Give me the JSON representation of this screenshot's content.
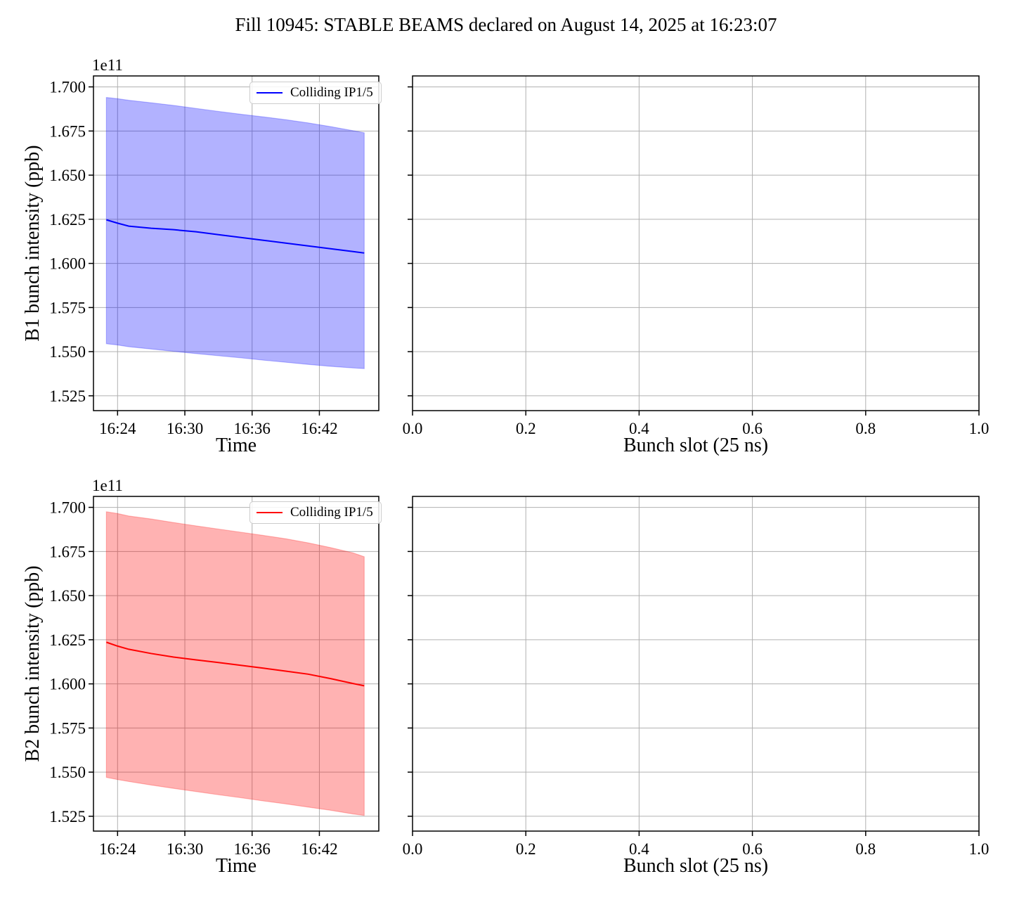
{
  "figure": {
    "title": "Fill 10945: STABLE BEAMS declared on August 14, 2025 at 16:23:07"
  },
  "chart_data": [
    {
      "name": "b1-intensity-vs-time",
      "type": "line",
      "xlabel": "Time",
      "ylabel": "B1 bunch intensity (ppb)",
      "offset_text": "1e11",
      "legend_label": "Colliding IP1/5",
      "legend_position": "upper center",
      "line_color": "#0000ff",
      "band_fill": "rgba(0,0,255,0.30)",
      "band_edge": "rgba(0,0,255,0.25)",
      "grid": true,
      "x_unit": "minutes-after-16:00",
      "xlim": [
        21.85,
        47.3
      ],
      "ylim": [
        1.5166,
        1.7062
      ],
      "xticks": [
        {
          "v": 24,
          "label": "16:24"
        },
        {
          "v": 30,
          "label": "16:30"
        },
        {
          "v": 36,
          "label": "16:36"
        },
        {
          "v": 42,
          "label": "16:42"
        }
      ],
      "yticks": [
        {
          "v": 1.7,
          "label": "1.700"
        },
        {
          "v": 1.675,
          "label": "1.675"
        },
        {
          "v": 1.65,
          "label": "1.650"
        },
        {
          "v": 1.625,
          "label": "1.625"
        },
        {
          "v": 1.6,
          "label": "1.600"
        },
        {
          "v": 1.575,
          "label": "1.575"
        },
        {
          "v": 1.55,
          "label": "1.550"
        },
        {
          "v": 1.525,
          "label": "1.525"
        }
      ],
      "series": {
        "x": [
          23,
          24,
          25,
          27,
          29,
          31,
          33,
          35,
          37,
          39,
          41,
          43,
          45,
          46
        ],
        "mean": [
          1.6247,
          1.6228,
          1.6211,
          1.6199,
          1.6191,
          1.6179,
          1.6163,
          1.6147,
          1.6131,
          1.6115,
          1.6099,
          1.6083,
          1.6067,
          1.6059
        ],
        "upper": [
          1.694,
          1.6933,
          1.6924,
          1.691,
          1.6895,
          1.6878,
          1.6861,
          1.6845,
          1.683,
          1.6814,
          1.6796,
          1.6775,
          1.6752,
          1.674
        ],
        "lower": [
          1.5545,
          1.5538,
          1.5528,
          1.5515,
          1.5502,
          1.5489,
          1.5477,
          1.5465,
          1.5452,
          1.544,
          1.5428,
          1.5417,
          1.5408,
          1.5404
        ]
      }
    },
    {
      "name": "b1-intensity-vs-bunch-slot",
      "type": "empty",
      "xlabel": "Bunch slot (25 ns)",
      "ylabel": "",
      "grid": true,
      "xlim": [
        0,
        1
      ],
      "ylim": [
        1.5166,
        1.7062
      ],
      "xticks": [
        {
          "v": 0.0,
          "label": "0.0"
        },
        {
          "v": 0.2,
          "label": "0.2"
        },
        {
          "v": 0.4,
          "label": "0.4"
        },
        {
          "v": 0.6,
          "label": "0.6"
        },
        {
          "v": 0.8,
          "label": "0.8"
        },
        {
          "v": 1.0,
          "label": "1.0"
        }
      ],
      "yticks": [
        {
          "v": 1.7,
          "label": ""
        },
        {
          "v": 1.675,
          "label": ""
        },
        {
          "v": 1.65,
          "label": ""
        },
        {
          "v": 1.625,
          "label": ""
        },
        {
          "v": 1.6,
          "label": ""
        },
        {
          "v": 1.575,
          "label": ""
        },
        {
          "v": 1.55,
          "label": ""
        },
        {
          "v": 1.525,
          "label": ""
        }
      ]
    },
    {
      "name": "b2-intensity-vs-time",
      "type": "line",
      "xlabel": "Time",
      "ylabel": "B2 bunch intensity (ppb)",
      "offset_text": "1e11",
      "legend_label": "Colliding IP1/5",
      "legend_position": "upper center",
      "line_color": "#ff0000",
      "band_fill": "rgba(255,0,0,0.30)",
      "band_edge": "rgba(255,0,0,0.25)",
      "grid": true,
      "x_unit": "minutes-after-16:00",
      "xlim": [
        21.85,
        47.3
      ],
      "ylim": [
        1.5166,
        1.7062
      ],
      "xticks": [
        {
          "v": 24,
          "label": "16:24"
        },
        {
          "v": 30,
          "label": "16:30"
        },
        {
          "v": 36,
          "label": "16:36"
        },
        {
          "v": 42,
          "label": "16:42"
        }
      ],
      "yticks": [
        {
          "v": 1.7,
          "label": "1.700"
        },
        {
          "v": 1.675,
          "label": "1.675"
        },
        {
          "v": 1.65,
          "label": "1.650"
        },
        {
          "v": 1.625,
          "label": "1.625"
        },
        {
          "v": 1.6,
          "label": "1.600"
        },
        {
          "v": 1.575,
          "label": "1.575"
        },
        {
          "v": 1.55,
          "label": "1.550"
        },
        {
          "v": 1.525,
          "label": "1.525"
        }
      ],
      "series": {
        "x": [
          23,
          24,
          25,
          27,
          29,
          31,
          33,
          35,
          37,
          39,
          41,
          43,
          45,
          46
        ],
        "mean": [
          1.6236,
          1.6214,
          1.6196,
          1.6172,
          1.6152,
          1.6136,
          1.6121,
          1.6105,
          1.6089,
          1.6072,
          1.6055,
          1.603,
          1.6002,
          1.5989
        ],
        "upper": [
          1.6975,
          1.6965,
          1.6951,
          1.6934,
          1.6914,
          1.6895,
          1.6877,
          1.6859,
          1.6841,
          1.6822,
          1.6799,
          1.6772,
          1.6742,
          1.672
        ],
        "lower": [
          1.547,
          1.5458,
          1.5447,
          1.5427,
          1.5408,
          1.539,
          1.5372,
          1.5355,
          1.5337,
          1.532,
          1.5302,
          1.5284,
          1.5263,
          1.5255
        ]
      }
    },
    {
      "name": "b2-intensity-vs-bunch-slot",
      "type": "empty",
      "xlabel": "Bunch slot (25 ns)",
      "ylabel": "",
      "grid": true,
      "xlim": [
        0,
        1
      ],
      "ylim": [
        1.5166,
        1.7062
      ],
      "xticks": [
        {
          "v": 0.0,
          "label": "0.0"
        },
        {
          "v": 0.2,
          "label": "0.2"
        },
        {
          "v": 0.4,
          "label": "0.4"
        },
        {
          "v": 0.6,
          "label": "0.6"
        },
        {
          "v": 0.8,
          "label": "0.8"
        },
        {
          "v": 1.0,
          "label": "1.0"
        }
      ],
      "yticks": [
        {
          "v": 1.7,
          "label": ""
        },
        {
          "v": 1.675,
          "label": ""
        },
        {
          "v": 1.65,
          "label": ""
        },
        {
          "v": 1.625,
          "label": ""
        },
        {
          "v": 1.6,
          "label": ""
        },
        {
          "v": 1.575,
          "label": ""
        },
        {
          "v": 1.55,
          "label": ""
        },
        {
          "v": 1.525,
          "label": ""
        }
      ]
    }
  ]
}
